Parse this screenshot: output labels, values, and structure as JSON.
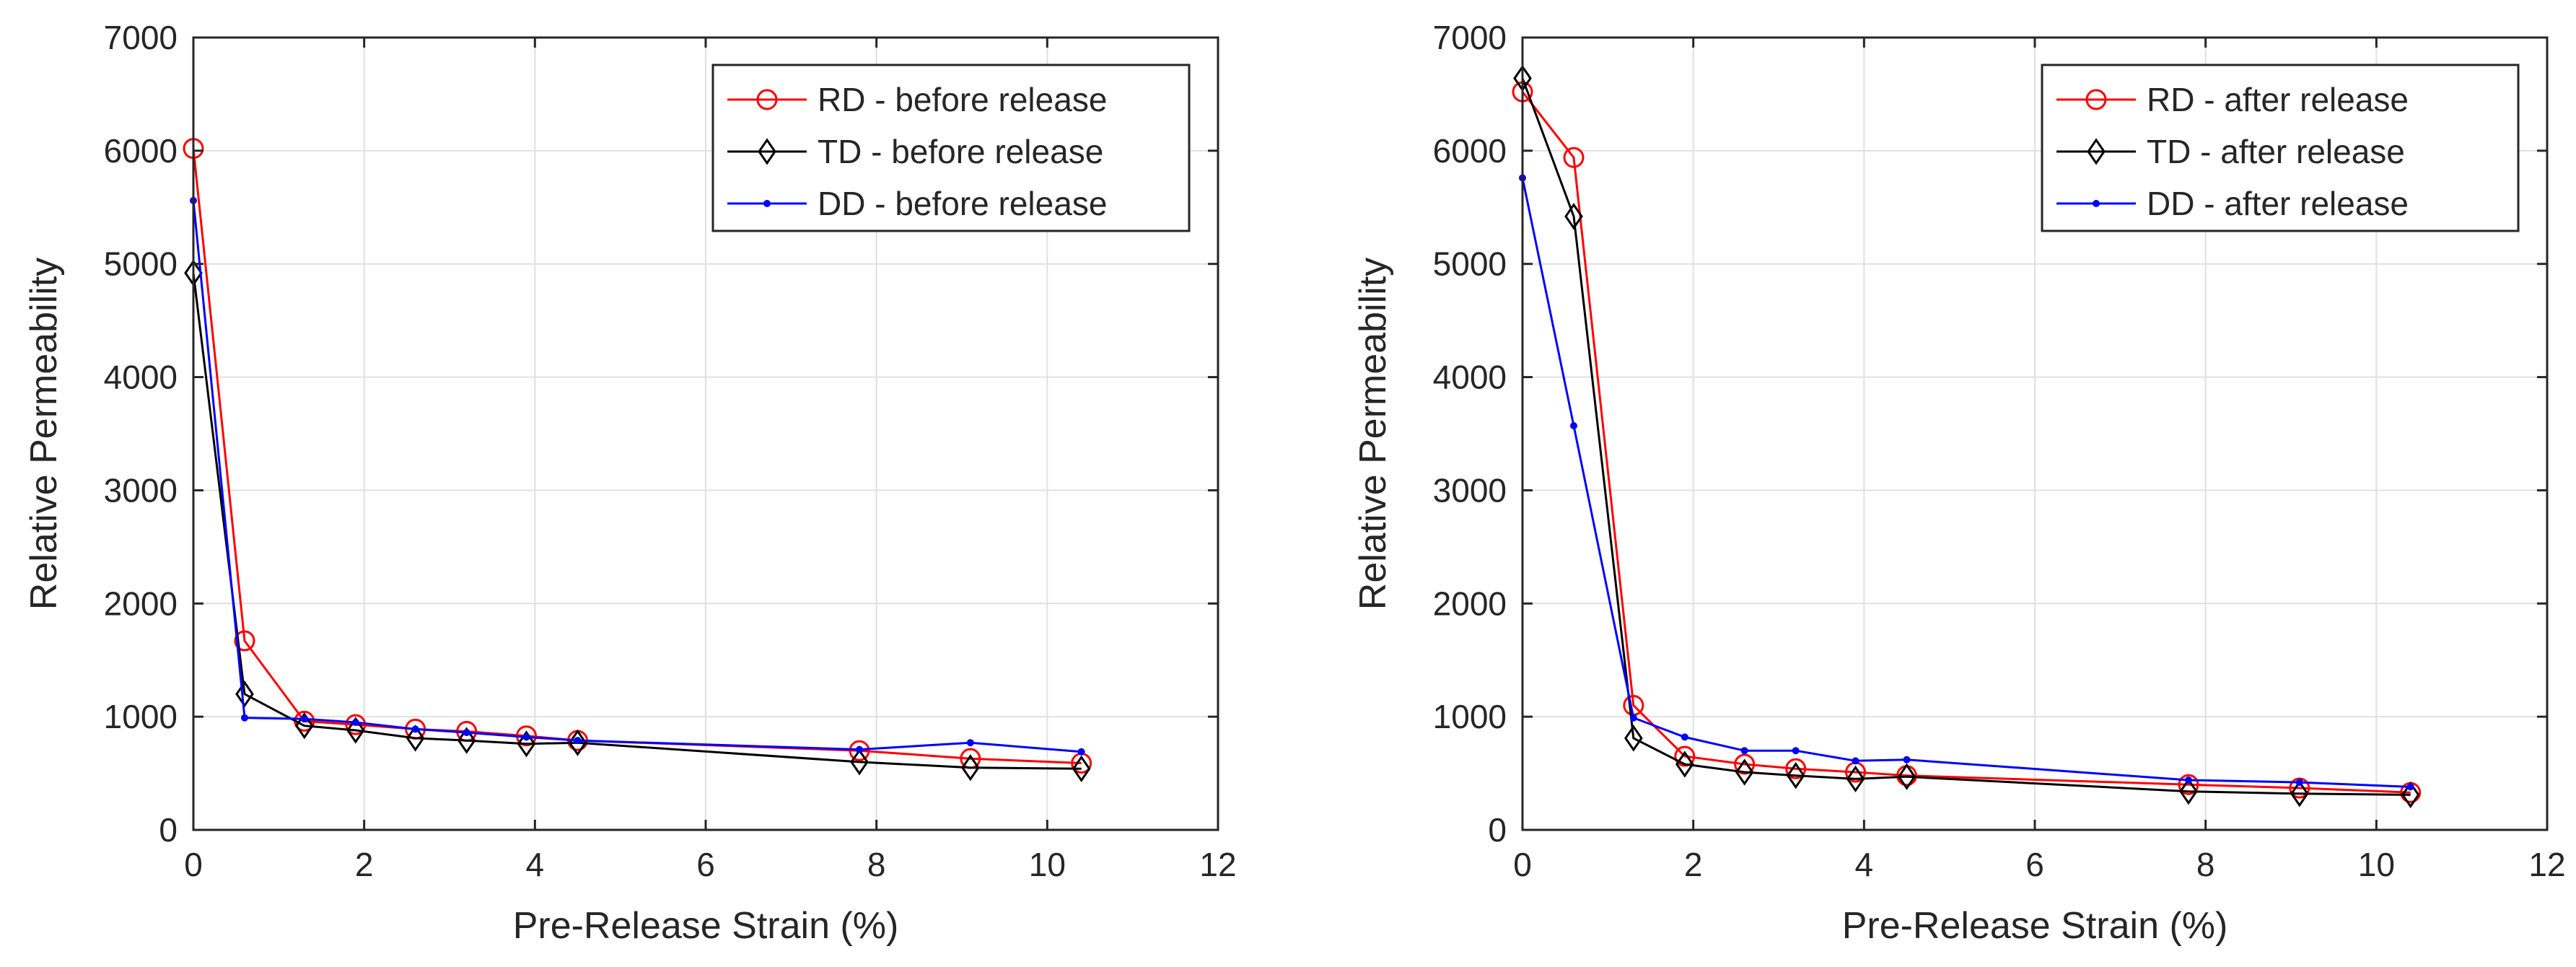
{
  "chart_data": [
    {
      "type": "line",
      "title": "",
      "xlabel": "Pre-Release Strain (%)",
      "ylabel": "Relative Permeability",
      "xlim": [
        0,
        12
      ],
      "ylim": [
        0,
        7000
      ],
      "xticks": [
        0,
        2,
        4,
        6,
        8,
        10,
        12
      ],
      "yticks": [
        0,
        1000,
        2000,
        3000,
        4000,
        5000,
        6000,
        7000
      ],
      "grid": true,
      "legend_position": "top-right",
      "series": [
        {
          "name": "RD - before release",
          "color": "#ff0000",
          "marker": "circle",
          "x": [
            0,
            0.6,
            1.3,
            1.9,
            2.6,
            3.2,
            3.9,
            4.5,
            7.8,
            9.1,
            10.4
          ],
          "y": [
            6020,
            1670,
            960,
            930,
            890,
            870,
            830,
            790,
            700,
            630,
            590
          ]
        },
        {
          "name": "TD - before release",
          "color": "#000000",
          "marker": "diamond",
          "x": [
            0,
            0.6,
            1.3,
            1.9,
            2.6,
            3.2,
            3.9,
            4.5,
            7.8,
            9.1,
            10.4
          ],
          "y": [
            4920,
            1200,
            920,
            880,
            810,
            790,
            760,
            770,
            600,
            550,
            540
          ]
        },
        {
          "name": "DD - before release",
          "color": "#0000ff",
          "marker": "dot",
          "x": [
            0,
            0.6,
            1.3,
            1.9,
            2.6,
            3.2,
            3.9,
            4.5,
            7.8,
            9.1,
            10.4
          ],
          "y": [
            5560,
            990,
            980,
            950,
            890,
            860,
            820,
            790,
            710,
            770,
            690
          ]
        }
      ]
    },
    {
      "type": "line",
      "title": "",
      "xlabel": "Pre-Release Strain (%)",
      "ylabel": "Relative Permeability",
      "xlim": [
        0,
        12
      ],
      "ylim": [
        0,
        7000
      ],
      "xticks": [
        0,
        2,
        4,
        6,
        8,
        10,
        12
      ],
      "yticks": [
        0,
        1000,
        2000,
        3000,
        4000,
        5000,
        6000,
        7000
      ],
      "grid": true,
      "legend_position": "top-right",
      "series": [
        {
          "name": "RD - after release",
          "color": "#ff0000",
          "marker": "circle",
          "x": [
            0,
            0.6,
            1.3,
            1.9,
            2.6,
            3.2,
            3.9,
            4.5,
            7.8,
            9.1,
            10.4
          ],
          "y": [
            6520,
            5940,
            1100,
            650,
            580,
            540,
            510,
            480,
            400,
            370,
            330
          ]
        },
        {
          "name": "TD - after release",
          "color": "#000000",
          "marker": "diamond",
          "x": [
            0,
            0.6,
            1.3,
            1.9,
            2.6,
            3.2,
            3.9,
            4.5,
            7.8,
            9.1,
            10.4
          ],
          "y": [
            6640,
            5420,
            810,
            580,
            510,
            480,
            450,
            470,
            340,
            320,
            310
          ]
        },
        {
          "name": "DD - after release",
          "color": "#0000ff",
          "marker": "dot",
          "x": [
            0,
            0.6,
            1.3,
            1.9,
            2.6,
            3.2,
            3.9,
            4.5,
            7.8,
            9.1,
            10.4
          ],
          "y": [
            5760,
            3570,
            990,
            820,
            700,
            700,
            610,
            620,
            440,
            420,
            380
          ]
        }
      ]
    }
  ]
}
